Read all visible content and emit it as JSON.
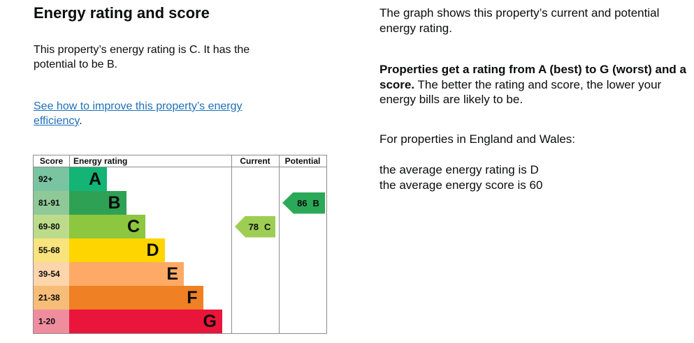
{
  "left": {
    "heading": "Energy rating and score",
    "intro": "This property’s energy rating is C. It has the potential to be B.",
    "link_text": "See how to improve this property’s energy efficiency",
    "link_suffix": ".",
    "link_color": "#1d70b8"
  },
  "right": {
    "p1": "The graph shows this property’s current and potential energy rating.",
    "p2_bold": "Properties get a rating from A (best) to G (worst) and a score.",
    "p2_rest": " The better the rating and score, the lower your energy bills are likely to be.",
    "p3": "For properties in England and Wales:",
    "avg_rating": "the average energy rating is D",
    "avg_score": "the average energy score is 60"
  },
  "chart_data": {
    "type": "bar",
    "orientation": "horizontal",
    "title": "Energy rating and score",
    "columns": [
      "Score",
      "Energy rating",
      "Current",
      "Potential"
    ],
    "bands": [
      {
        "band": "A",
        "score_range": "92+",
        "bar_color": "#14b476",
        "score_cell_color": "#7ac4a1"
      },
      {
        "band": "B",
        "score_range": "81-91",
        "bar_color": "#2fa154",
        "score_cell_color": "#90c998"
      },
      {
        "band": "C",
        "score_range": "69-80",
        "bar_color": "#8dc63f",
        "score_cell_color": "#bcdc8b"
      },
      {
        "band": "D",
        "score_range": "55-68",
        "bar_color": "#ffd500",
        "score_cell_color": "#f8e37c"
      },
      {
        "band": "E",
        "score_range": "39-54",
        "bar_color": "#fcaa65",
        "score_cell_color": "#fdd5ab"
      },
      {
        "band": "F",
        "score_range": "21-38",
        "bar_color": "#ef8023",
        "score_cell_color": "#f6bd78"
      },
      {
        "band": "G",
        "score_range": "1-20",
        "bar_color": "#e9153b",
        "score_cell_color": "#ef8d9e"
      }
    ],
    "current": {
      "score": "78",
      "band": "C",
      "color": "#9ecd53"
    },
    "potential": {
      "score": "86",
      "band": "B",
      "color": "#2ba858"
    },
    "border_color": "#8c8c8c",
    "legend_position": "none",
    "grid": false
  }
}
